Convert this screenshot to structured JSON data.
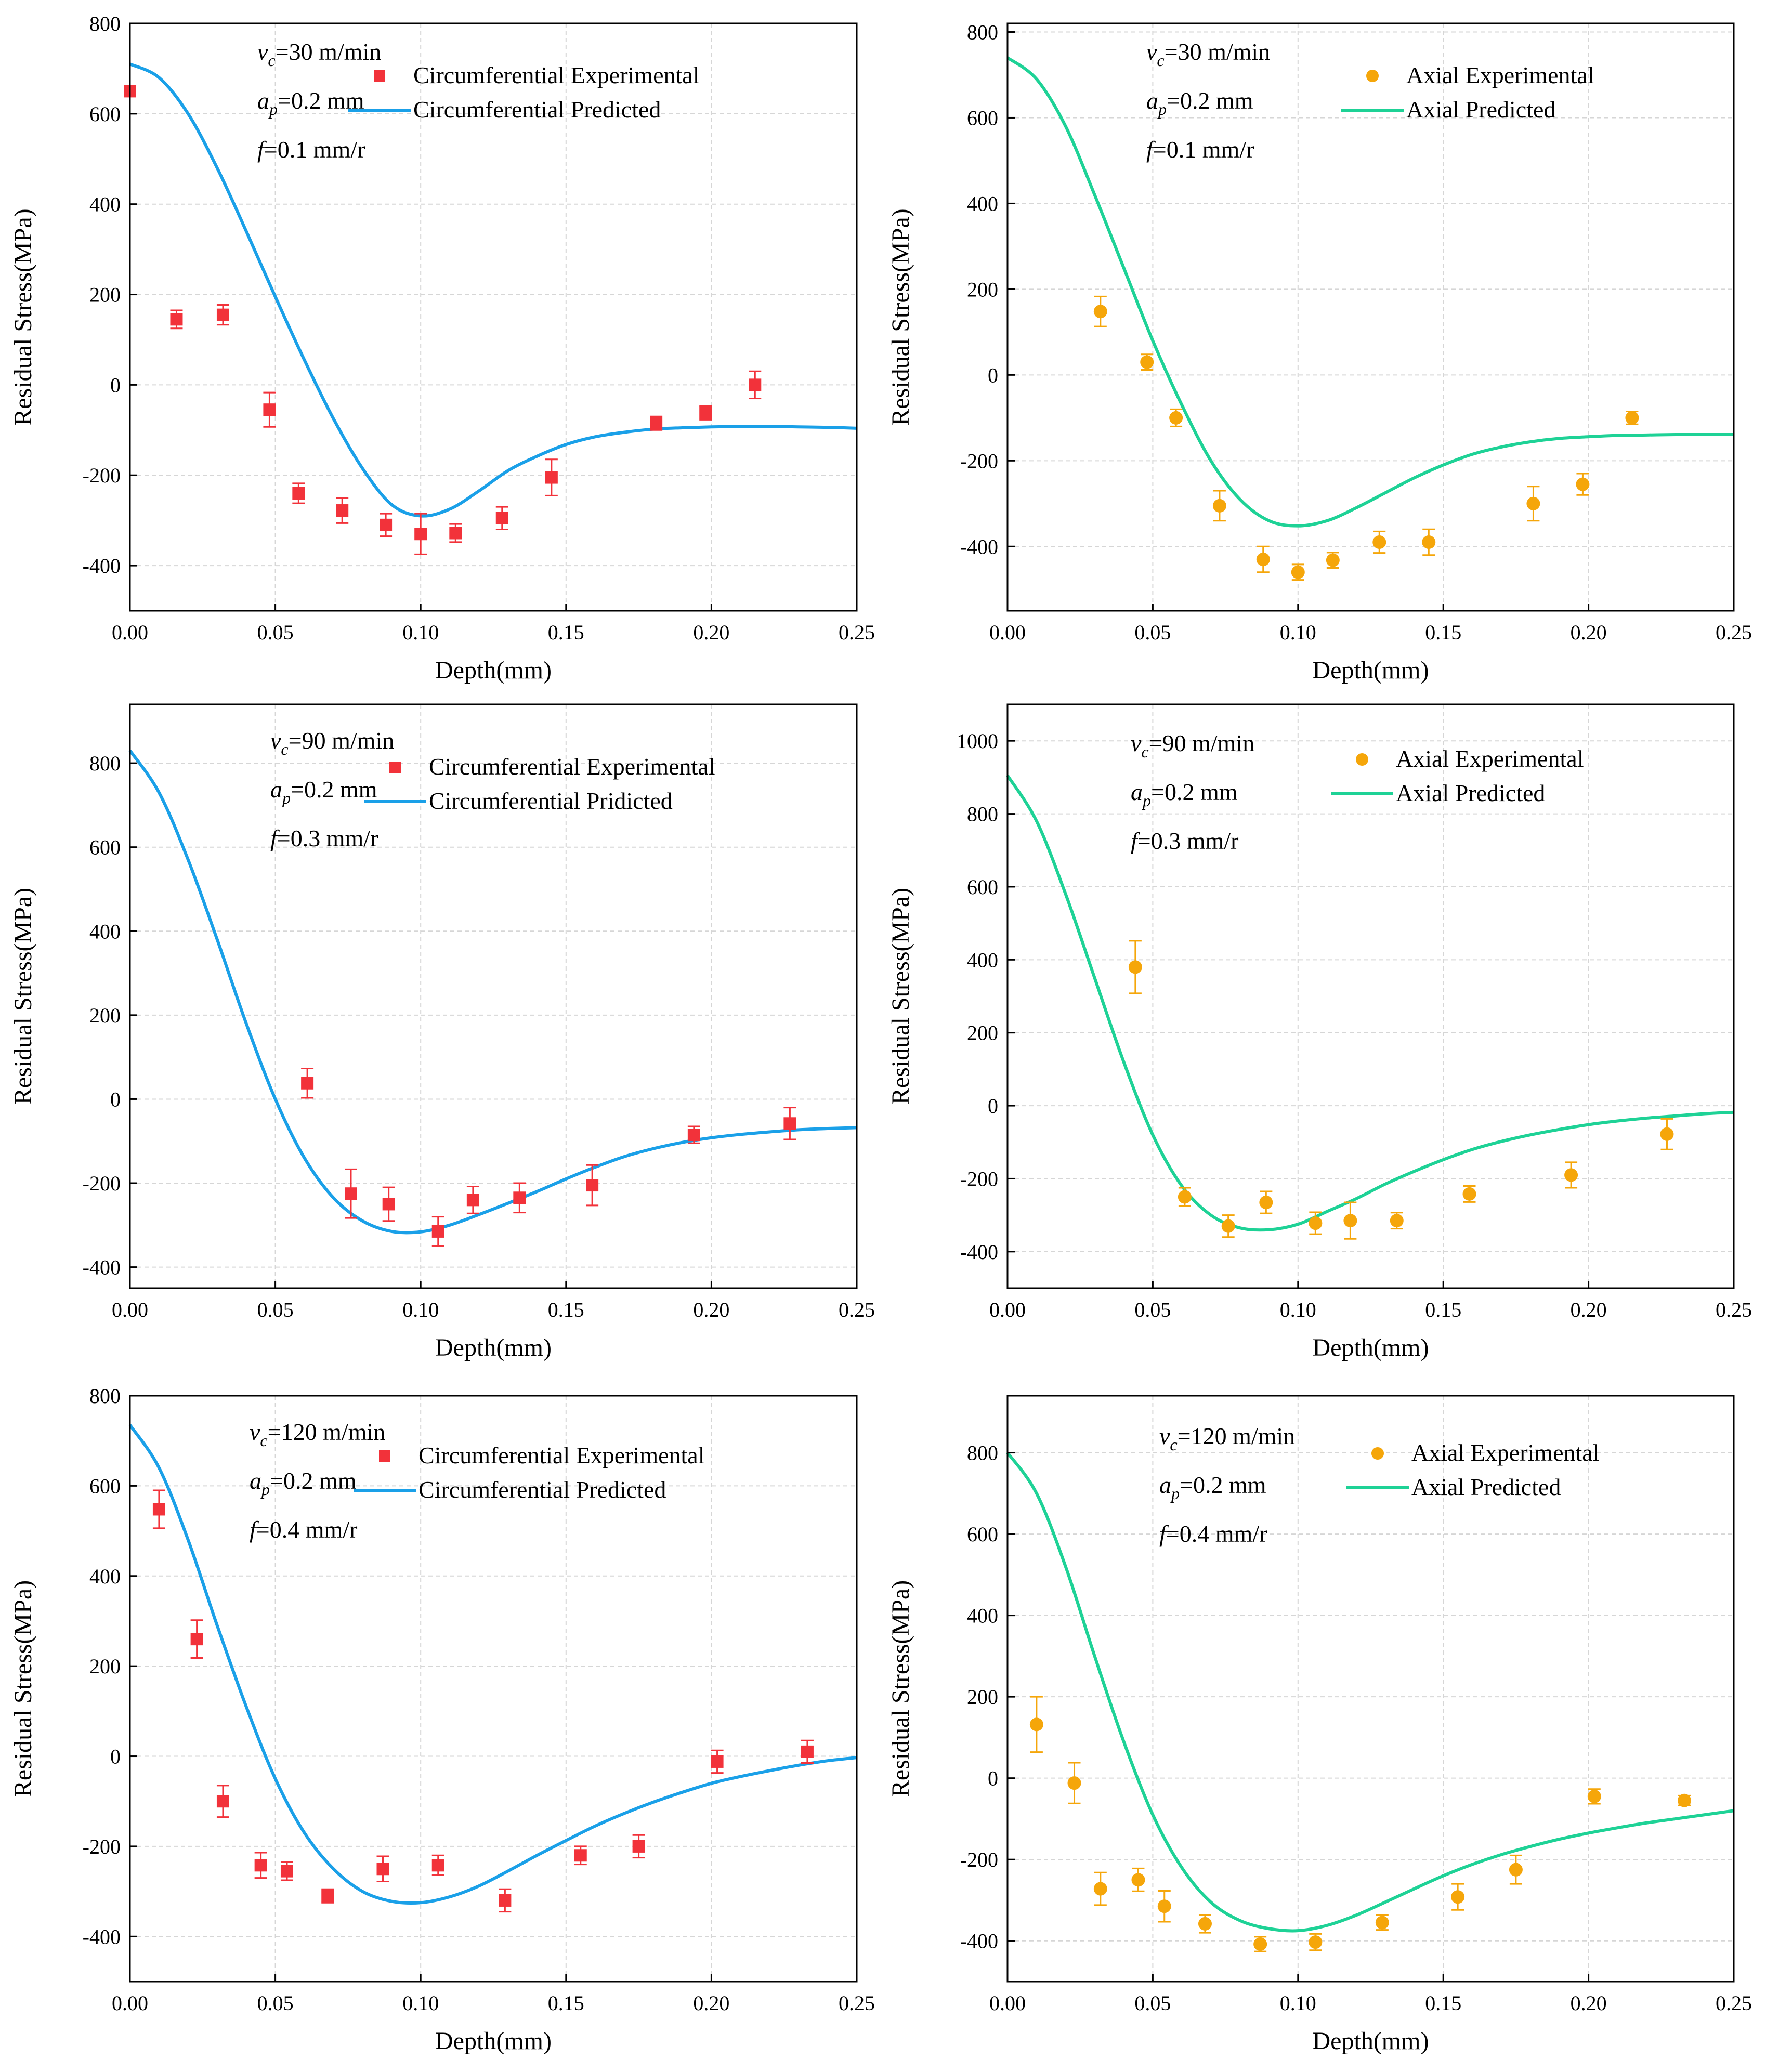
{
  "colors": {
    "circ_marker": "#f2323a",
    "circ_line": "#1aa0e8",
    "axial_marker": "#f5a60a",
    "axial_line": "#1ed296",
    "grid": "#d6d6d6",
    "axis": "#000000"
  },
  "chart_data": [
    {
      "type": "scatter",
      "panel": "top-left",
      "xlabel": "Depth(mm)",
      "ylabel": "Residual Stress(MPa)",
      "xlim": [
        0,
        0.25
      ],
      "ylim": [
        -500,
        800
      ],
      "xticks": [
        0,
        0.05,
        0.1,
        0.15,
        0.2,
        0.25
      ],
      "xtick_labels": [
        "0.00",
        "0.05",
        "0.10",
        "0.15",
        "0.20",
        "0.25"
      ],
      "yticks": [
        -400,
        -200,
        0,
        200,
        400,
        600,
        800
      ],
      "ytick_labels": [
        "-400",
        "-200",
        "0",
        "200",
        "400",
        "600",
        "800"
      ],
      "params": {
        "vc": "=30 m/min",
        "ap": "=0.2 mm",
        "f": "=0.1 mm/r"
      },
      "legend": {
        "experimental": "Circumferential Experimental",
        "predicted": "Circumferential Predicted"
      },
      "kind": "circ",
      "experimental": [
        {
          "x": 0.0,
          "y": 650,
          "err": 0
        },
        {
          "x": 0.016,
          "y": 145,
          "err": 20
        },
        {
          "x": 0.032,
          "y": 155,
          "err": 22
        },
        {
          "x": 0.048,
          "y": -55,
          "err": 38
        },
        {
          "x": 0.058,
          "y": -240,
          "err": 22
        },
        {
          "x": 0.073,
          "y": -278,
          "err": 28
        },
        {
          "x": 0.088,
          "y": -310,
          "err": 25
        },
        {
          "x": 0.1,
          "y": -330,
          "err": 45
        },
        {
          "x": 0.112,
          "y": -328,
          "err": 20
        },
        {
          "x": 0.128,
          "y": -295,
          "err": 25
        },
        {
          "x": 0.145,
          "y": -205,
          "err": 40
        },
        {
          "x": 0.181,
          "y": -85,
          "err": 15
        },
        {
          "x": 0.198,
          "y": -62,
          "err": 15
        },
        {
          "x": 0.215,
          "y": 0,
          "err": 30
        }
      ],
      "predicted": {
        "x": [
          0,
          0.01,
          0.02,
          0.03,
          0.04,
          0.05,
          0.06,
          0.07,
          0.08,
          0.09,
          0.1,
          0.11,
          0.12,
          0.13,
          0.14,
          0.15,
          0.16,
          0.17,
          0.18,
          0.19,
          0.2,
          0.21,
          0.22,
          0.23,
          0.24,
          0.25
        ],
        "y": [
          710,
          680,
          600,
          480,
          340,
          195,
          55,
          -75,
          -185,
          -265,
          -290,
          -275,
          -235,
          -190,
          -158,
          -132,
          -115,
          -105,
          -98,
          -95,
          -93,
          -92,
          -92,
          -93,
          -94,
          -96
        ]
      }
    },
    {
      "type": "scatter",
      "panel": "top-right",
      "xlabel": "Depth(mm)",
      "ylabel": "Residual Stress(MPa)",
      "xlim": [
        0,
        0.25
      ],
      "ylim": [
        -550,
        820
      ],
      "xticks": [
        0,
        0.05,
        0.1,
        0.15,
        0.2,
        0.25
      ],
      "xtick_labels": [
        "0.00",
        "0.05",
        "0.10",
        "0.15",
        "0.20",
        "0.25"
      ],
      "yticks": [
        -400,
        -200,
        0,
        200,
        400,
        600,
        800
      ],
      "ytick_labels": [
        "-400",
        "-200",
        "0",
        "200",
        "400",
        "600",
        "800"
      ],
      "params": {
        "vc": "=30 m/min",
        "ap": "=0.2 mm",
        "f": "=0.1 mm/r"
      },
      "legend": {
        "experimental": "Axial Experimental",
        "predicted": "Axial Predicted"
      },
      "kind": "axial",
      "experimental": [
        {
          "x": 0.032,
          "y": 148,
          "err": 35
        },
        {
          "x": 0.048,
          "y": 30,
          "err": 18
        },
        {
          "x": 0.058,
          "y": -100,
          "err": 20
        },
        {
          "x": 0.073,
          "y": -305,
          "err": 35
        },
        {
          "x": 0.088,
          "y": -430,
          "err": 30
        },
        {
          "x": 0.1,
          "y": -460,
          "err": 18
        },
        {
          "x": 0.112,
          "y": -432,
          "err": 18
        },
        {
          "x": 0.128,
          "y": -390,
          "err": 25
        },
        {
          "x": 0.145,
          "y": -390,
          "err": 30
        },
        {
          "x": 0.181,
          "y": -300,
          "err": 40
        },
        {
          "x": 0.198,
          "y": -255,
          "err": 25
        },
        {
          "x": 0.215,
          "y": -100,
          "err": 15
        }
      ],
      "predicted": {
        "x": [
          0,
          0.01,
          0.02,
          0.03,
          0.04,
          0.05,
          0.06,
          0.07,
          0.08,
          0.09,
          0.1,
          0.11,
          0.12,
          0.13,
          0.14,
          0.15,
          0.16,
          0.17,
          0.18,
          0.19,
          0.2,
          0.21,
          0.22,
          0.23,
          0.24,
          0.25
        ],
        "y": [
          740,
          690,
          580,
          420,
          250,
          80,
          -70,
          -200,
          -290,
          -340,
          -352,
          -340,
          -310,
          -275,
          -240,
          -210,
          -185,
          -168,
          -156,
          -148,
          -144,
          -141,
          -140,
          -139,
          -139,
          -139
        ]
      }
    },
    {
      "type": "scatter",
      "panel": "middle-left",
      "xlabel": "Depth(mm)",
      "ylabel": "Residual Stress(MPa)",
      "xlim": [
        0,
        0.25
      ],
      "ylim": [
        -450,
        940
      ],
      "xticks": [
        0,
        0.05,
        0.1,
        0.15,
        0.2,
        0.25
      ],
      "xtick_labels": [
        "0.00",
        "0.05",
        "0.10",
        "0.15",
        "0.20",
        "0.25"
      ],
      "yticks": [
        -400,
        -200,
        0,
        200,
        400,
        600,
        800
      ],
      "ytick_labels": [
        "-400",
        "-200",
        "0",
        "200",
        "400",
        "600",
        "800"
      ],
      "params": {
        "vc": "=90 m/min",
        "ap": "=0.2 mm",
        "f": "=0.3 mm/r"
      },
      "legend": {
        "experimental": "Circumferential Experimental",
        "predicted": "Circumferential Pridicted"
      },
      "kind": "circ",
      "experimental": [
        {
          "x": 0.061,
          "y": 38,
          "err": 35
        },
        {
          "x": 0.076,
          "y": -225,
          "err": 58
        },
        {
          "x": 0.089,
          "y": -250,
          "err": 40
        },
        {
          "x": 0.106,
          "y": -315,
          "err": 35
        },
        {
          "x": 0.118,
          "y": -240,
          "err": 32
        },
        {
          "x": 0.134,
          "y": -235,
          "err": 35
        },
        {
          "x": 0.159,
          "y": -205,
          "err": 48
        },
        {
          "x": 0.194,
          "y": -85,
          "err": 20
        },
        {
          "x": 0.227,
          "y": -58,
          "err": 38
        }
      ],
      "predicted": {
        "x": [
          0,
          0.01,
          0.02,
          0.03,
          0.04,
          0.05,
          0.06,
          0.07,
          0.08,
          0.09,
          0.1,
          0.11,
          0.12,
          0.13,
          0.14,
          0.15,
          0.16,
          0.17,
          0.18,
          0.19,
          0.2,
          0.21,
          0.22,
          0.23,
          0.24,
          0.25
        ],
        "y": [
          830,
          730,
          570,
          380,
          180,
          0,
          -140,
          -235,
          -290,
          -315,
          -316,
          -300,
          -275,
          -248,
          -220,
          -190,
          -162,
          -137,
          -118,
          -103,
          -92,
          -84,
          -78,
          -73,
          -70,
          -68
        ]
      }
    },
    {
      "type": "scatter",
      "panel": "middle-right",
      "xlabel": "Depth(mm)",
      "ylabel": "Residual Stress(MPa)",
      "xlim": [
        0,
        0.25
      ],
      "ylim": [
        -500,
        1100
      ],
      "xticks": [
        0,
        0.05,
        0.1,
        0.15,
        0.2,
        0.25
      ],
      "xtick_labels": [
        "0.00",
        "0.05",
        "0.10",
        "0.15",
        "0.20",
        "0.25"
      ],
      "yticks": [
        -400,
        -200,
        0,
        200,
        400,
        600,
        800,
        1000
      ],
      "ytick_labels": [
        "-400",
        "-200",
        "0",
        "200",
        "400",
        "600",
        "800",
        "1000"
      ],
      "params": {
        "vc": "=90 m/min",
        "ap": "=0.2 mm",
        "f": "=0.3 mm/r"
      },
      "legend": {
        "experimental": "Axial Experimental",
        "predicted": "Axial Predicted"
      },
      "kind": "axial",
      "experimental": [
        {
          "x": 0.044,
          "y": 380,
          "err": 72
        },
        {
          "x": 0.061,
          "y": -250,
          "err": 25
        },
        {
          "x": 0.076,
          "y": -330,
          "err": 30
        },
        {
          "x": 0.089,
          "y": -265,
          "err": 30
        },
        {
          "x": 0.106,
          "y": -322,
          "err": 30
        },
        {
          "x": 0.118,
          "y": -315,
          "err": 50
        },
        {
          "x": 0.134,
          "y": -315,
          "err": 22
        },
        {
          "x": 0.159,
          "y": -242,
          "err": 22
        },
        {
          "x": 0.194,
          "y": -190,
          "err": 35
        },
        {
          "x": 0.227,
          "y": -78,
          "err": 42
        }
      ],
      "predicted": {
        "x": [
          0,
          0.01,
          0.02,
          0.03,
          0.04,
          0.05,
          0.06,
          0.07,
          0.08,
          0.09,
          0.1,
          0.11,
          0.12,
          0.13,
          0.14,
          0.15,
          0.16,
          0.17,
          0.18,
          0.19,
          0.2,
          0.21,
          0.22,
          0.23,
          0.24,
          0.25
        ],
        "y": [
          905,
          780,
          580,
          350,
          120,
          -80,
          -220,
          -300,
          -335,
          -340,
          -325,
          -290,
          -255,
          -215,
          -180,
          -148,
          -120,
          -98,
          -80,
          -65,
          -52,
          -42,
          -34,
          -28,
          -22,
          -18
        ]
      }
    },
    {
      "type": "scatter",
      "panel": "bottom-left",
      "xlabel": "Depth(mm)",
      "ylabel": "Residual Stress(MPa)",
      "xlim": [
        0,
        0.25
      ],
      "ylim": [
        -500,
        800
      ],
      "xticks": [
        0,
        0.05,
        0.1,
        0.15,
        0.2,
        0.25
      ],
      "xtick_labels": [
        "0.00",
        "0.05",
        "0.10",
        "0.15",
        "0.20",
        "0.25"
      ],
      "yticks": [
        -400,
        -200,
        0,
        200,
        400,
        600,
        800
      ],
      "ytick_labels": [
        "-400",
        "-200",
        "0",
        "200",
        "400",
        "600",
        "800"
      ],
      "params": {
        "vc": "=120 m/min",
        "ap": "=0.2 mm",
        "f": "=0.4 mm/r"
      },
      "legend": {
        "experimental": "Circumferential Experimental",
        "predicted": "Circumferential Predicted"
      },
      "kind": "circ",
      "experimental": [
        {
          "x": 0.01,
          "y": 548,
          "err": 42
        },
        {
          "x": 0.023,
          "y": 260,
          "err": 42
        },
        {
          "x": 0.032,
          "y": -100,
          "err": 35
        },
        {
          "x": 0.045,
          "y": -242,
          "err": 28
        },
        {
          "x": 0.054,
          "y": -255,
          "err": 20
        },
        {
          "x": 0.068,
          "y": -310,
          "err": 15
        },
        {
          "x": 0.087,
          "y": -250,
          "err": 28
        },
        {
          "x": 0.106,
          "y": -242,
          "err": 22
        },
        {
          "x": 0.129,
          "y": -320,
          "err": 25
        },
        {
          "x": 0.155,
          "y": -220,
          "err": 20
        },
        {
          "x": 0.175,
          "y": -200,
          "err": 25
        },
        {
          "x": 0.202,
          "y": -12,
          "err": 25
        },
        {
          "x": 0.233,
          "y": 10,
          "err": 25
        }
      ],
      "predicted": {
        "x": [
          0,
          0.01,
          0.02,
          0.03,
          0.04,
          0.05,
          0.06,
          0.07,
          0.08,
          0.09,
          0.1,
          0.11,
          0.12,
          0.13,
          0.14,
          0.15,
          0.16,
          0.17,
          0.18,
          0.19,
          0.2,
          0.21,
          0.22,
          0.23,
          0.24,
          0.25
        ],
        "y": [
          735,
          640,
          480,
          290,
          110,
          -50,
          -170,
          -250,
          -300,
          -322,
          -325,
          -312,
          -288,
          -255,
          -220,
          -187,
          -155,
          -127,
          -102,
          -80,
          -60,
          -45,
          -32,
          -20,
          -10,
          -3
        ]
      }
    },
    {
      "type": "scatter",
      "panel": "bottom-right",
      "xlabel": "Depth(mm)",
      "ylabel": "Residual Stress(MPa)",
      "xlim": [
        0,
        0.25
      ],
      "ylim": [
        -500,
        940
      ],
      "xticks": [
        0,
        0.05,
        0.1,
        0.15,
        0.2,
        0.25
      ],
      "xtick_labels": [
        "0.00",
        "0.05",
        "0.10",
        "0.15",
        "0.20",
        "0.25"
      ],
      "yticks": [
        -400,
        -200,
        0,
        200,
        400,
        600,
        800
      ],
      "ytick_labels": [
        "-400",
        "-200",
        "0",
        "200",
        "400",
        "600",
        "800"
      ],
      "params": {
        "vc": "=120 m/min",
        "ap": "=0.2 mm",
        "f": "=0.4 mm/r"
      },
      "legend": {
        "experimental": "Axial Experimental",
        "predicted": "Axial Predicted"
      },
      "kind": "axial",
      "experimental": [
        {
          "x": 0.01,
          "y": 132,
          "err": 68
        },
        {
          "x": 0.023,
          "y": -12,
          "err": 50
        },
        {
          "x": 0.032,
          "y": -272,
          "err": 40
        },
        {
          "x": 0.045,
          "y": -250,
          "err": 28
        },
        {
          "x": 0.054,
          "y": -315,
          "err": 38
        },
        {
          "x": 0.068,
          "y": -358,
          "err": 22
        },
        {
          "x": 0.087,
          "y": -408,
          "err": 18
        },
        {
          "x": 0.106,
          "y": -403,
          "err": 20
        },
        {
          "x": 0.129,
          "y": -355,
          "err": 18
        },
        {
          "x": 0.155,
          "y": -292,
          "err": 32
        },
        {
          "x": 0.175,
          "y": -225,
          "err": 35
        },
        {
          "x": 0.202,
          "y": -45,
          "err": 18
        },
        {
          "x": 0.233,
          "y": -55,
          "err": 12
        }
      ],
      "predicted": {
        "x": [
          0,
          0.01,
          0.02,
          0.03,
          0.04,
          0.05,
          0.06,
          0.07,
          0.08,
          0.09,
          0.1,
          0.11,
          0.12,
          0.13,
          0.14,
          0.15,
          0.16,
          0.17,
          0.18,
          0.19,
          0.2,
          0.21,
          0.22,
          0.23,
          0.24,
          0.25
        ],
        "y": [
          800,
          700,
          520,
          300,
          90,
          -90,
          -220,
          -305,
          -350,
          -370,
          -375,
          -362,
          -337,
          -305,
          -272,
          -240,
          -212,
          -188,
          -168,
          -150,
          -135,
          -122,
          -110,
          -100,
          -90,
          -80
        ]
      }
    }
  ]
}
